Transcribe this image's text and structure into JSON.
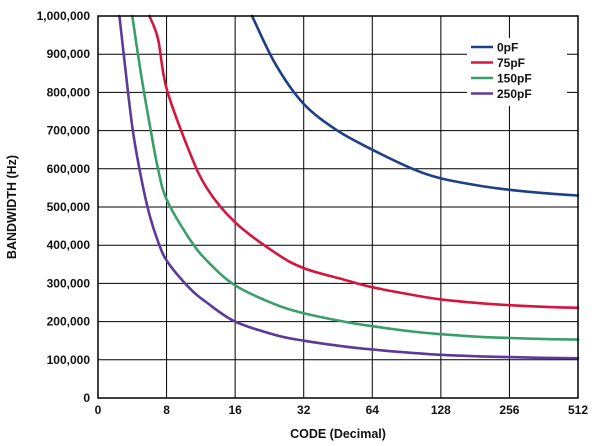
{
  "chart_data": {
    "type": "line",
    "title": "",
    "xlabel": "CODE (Decimal)",
    "ylabel": "BANDWIDTH (Hz)",
    "xscale": "log2",
    "xticks": [
      0,
      8,
      16,
      32,
      64,
      128,
      256,
      512
    ],
    "xtick_labels": [
      "0",
      "8",
      "16",
      "32",
      "64",
      "128",
      "256",
      "512"
    ],
    "ylim": [
      0,
      1000000
    ],
    "yticks": [
      0,
      100000,
      200000,
      300000,
      400000,
      500000,
      600000,
      700000,
      800000,
      900000,
      1000000
    ],
    "ytick_labels": [
      "0",
      "100,000",
      "200,000",
      "300,000",
      "400,000",
      "500,000",
      "600,000",
      "700,000",
      "800,000",
      "900,000",
      "1,000,000"
    ],
    "grid": true,
    "legend_position": "top-right",
    "series": [
      {
        "name": "0pF",
        "color": "#1c3f87",
        "x": [
          19,
          24,
          32,
          45,
          64,
          96,
          128,
          192,
          256,
          384,
          512
        ],
        "y": [
          1000000,
          875000,
          770000,
          700000,
          650000,
          600000,
          575000,
          555000,
          545000,
          535000,
          530000
        ]
      },
      {
        "name": "75pF",
        "color": "#d4163f",
        "x": [
          6,
          7,
          8,
          10,
          12,
          16,
          24,
          32,
          48,
          64,
          96,
          128,
          192,
          256,
          384,
          512
        ],
        "y": [
          1000000,
          940000,
          810000,
          650000,
          550000,
          460000,
          380000,
          340000,
          310000,
          290000,
          270000,
          258000,
          248000,
          243000,
          238000,
          236000
        ]
      },
      {
        "name": "150pF",
        "color": "#3a9e6a",
        "x": [
          4,
          5,
          6,
          7,
          8,
          10,
          12,
          16,
          24,
          32,
          48,
          64,
          96,
          128,
          192,
          256,
          384,
          512
        ],
        "y": [
          1000000,
          850000,
          720000,
          600000,
          520000,
          420000,
          360000,
          295000,
          245000,
          222000,
          200000,
          188000,
          174000,
          167000,
          160000,
          157000,
          154000,
          153000
        ]
      },
      {
        "name": "250pF",
        "color": "#5b3a9a",
        "x": [
          2.5,
          3,
          4,
          5,
          6,
          7,
          8,
          10,
          12,
          16,
          24,
          32,
          48,
          64,
          96,
          128,
          192,
          256,
          384,
          512
        ],
        "y": [
          1000000,
          900000,
          710000,
          580000,
          480000,
          410000,
          360000,
          290000,
          250000,
          200000,
          165000,
          150000,
          135000,
          127000,
          118000,
          113000,
          109000,
          107000,
          105000,
          104000
        ]
      }
    ]
  }
}
